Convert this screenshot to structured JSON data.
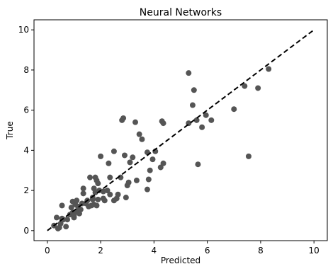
{
  "chart_data": {
    "type": "scatter",
    "title": "Neural Networks",
    "xlabel": "Predicted",
    "ylabel": "True",
    "xlim": [
      -0.5,
      10.5
    ],
    "ylim": [
      -0.5,
      10.5
    ],
    "x_ticks": [
      0,
      2,
      4,
      6,
      8,
      10
    ],
    "y_ticks": [
      0,
      2,
      4,
      6,
      8,
      10
    ],
    "x_tick_labels": [
      "0",
      "2",
      "4",
      "6",
      "8",
      "10"
    ],
    "y_tick_labels": [
      "0",
      "2",
      "4",
      "6",
      "8",
      "10"
    ],
    "grid": false,
    "point_color": "#555555",
    "line_color": "#000000",
    "reference_line": {
      "from": [
        0,
        0
      ],
      "to": [
        10,
        10
      ],
      "style": "dashed"
    },
    "points": [
      [
        0.25,
        0.25
      ],
      [
        0.35,
        0.65
      ],
      [
        0.4,
        0.1
      ],
      [
        0.45,
        0.15
      ],
      [
        0.5,
        0.35
      ],
      [
        0.55,
        0.6
      ],
      [
        0.55,
        1.25
      ],
      [
        0.6,
        0.55
      ],
      [
        0.7,
        0.2
      ],
      [
        0.75,
        0.55
      ],
      [
        0.85,
        0.8
      ],
      [
        0.9,
        1.15
      ],
      [
        0.95,
        1.45
      ],
      [
        0.95,
        0.9
      ],
      [
        1.0,
        0.65
      ],
      [
        1.0,
        0.75
      ],
      [
        1.05,
        1.3
      ],
      [
        1.1,
        1.5
      ],
      [
        1.1,
        0.95
      ],
      [
        1.15,
        1.2
      ],
      [
        1.2,
        0.85
      ],
      [
        1.25,
        1.05
      ],
      [
        1.3,
        1.35
      ],
      [
        1.35,
        1.85
      ],
      [
        1.35,
        2.1
      ],
      [
        1.45,
        1.35
      ],
      [
        1.5,
        1.5
      ],
      [
        1.55,
        1.2
      ],
      [
        1.6,
        2.65
      ],
      [
        1.65,
        1.25
      ],
      [
        1.7,
        1.65
      ],
      [
        1.7,
        1.55
      ],
      [
        1.75,
        2.1
      ],
      [
        1.75,
        1.3
      ],
      [
        1.8,
        2.65
      ],
      [
        1.8,
        1.9
      ],
      [
        1.85,
        2.5
      ],
      [
        1.85,
        1.25
      ],
      [
        1.9,
        1.55
      ],
      [
        1.9,
        2.35
      ],
      [
        1.95,
        2.0
      ],
      [
        2.0,
        3.7
      ],
      [
        2.1,
        1.95
      ],
      [
        2.1,
        1.6
      ],
      [
        2.15,
        1.5
      ],
      [
        2.25,
        2.0
      ],
      [
        2.3,
        3.35
      ],
      [
        2.35,
        2.65
      ],
      [
        2.35,
        1.8
      ],
      [
        2.5,
        1.5
      ],
      [
        2.5,
        3.95
      ],
      [
        2.6,
        1.6
      ],
      [
        2.65,
        1.8
      ],
      [
        2.75,
        2.65
      ],
      [
        2.8,
        5.5
      ],
      [
        2.85,
        5.6
      ],
      [
        2.9,
        3.75
      ],
      [
        2.95,
        1.65
      ],
      [
        3.0,
        2.25
      ],
      [
        3.05,
        2.4
      ],
      [
        3.1,
        3.4
      ],
      [
        3.2,
        3.65
      ],
      [
        3.3,
        5.4
      ],
      [
        3.35,
        2.5
      ],
      [
        3.45,
        4.8
      ],
      [
        3.55,
        4.55
      ],
      [
        3.75,
        3.9
      ],
      [
        3.75,
        2.05
      ],
      [
        3.8,
        2.55
      ],
      [
        3.85,
        3.0
      ],
      [
        3.95,
        3.55
      ],
      [
        4.05,
        3.95
      ],
      [
        4.25,
        3.15
      ],
      [
        4.3,
        5.45
      ],
      [
        4.35,
        5.35
      ],
      [
        4.35,
        3.35
      ],
      [
        5.3,
        7.85
      ],
      [
        5.3,
        5.35
      ],
      [
        5.45,
        6.25
      ],
      [
        5.5,
        7.0
      ],
      [
        5.6,
        5.5
      ],
      [
        5.65,
        3.3
      ],
      [
        5.8,
        5.15
      ],
      [
        5.95,
        5.75
      ],
      [
        6.15,
        5.5
      ],
      [
        7.0,
        6.05
      ],
      [
        7.4,
        7.2
      ],
      [
        7.55,
        3.7
      ],
      [
        7.9,
        7.1
      ],
      [
        8.3,
        8.05
      ]
    ]
  }
}
